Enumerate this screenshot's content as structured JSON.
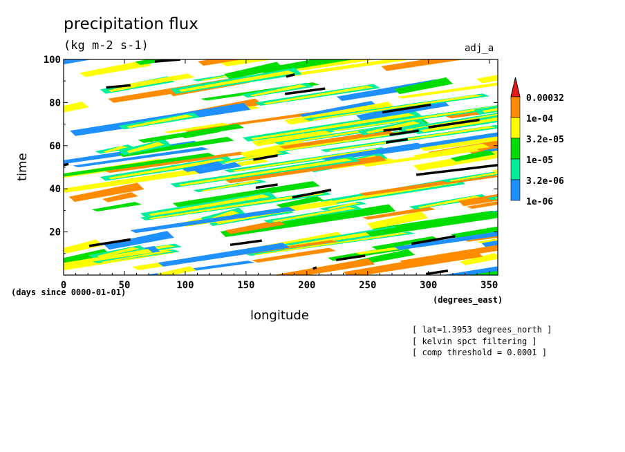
{
  "title": "precipitation flux",
  "units": "(kg m-2 s-1)",
  "dataset_tag": "adj_a",
  "notes": [
    "[ lat=1.3953 degrees_north ]",
    "[ kelvin spct filtering ]",
    "[ comp threshold = 0.0001 ]"
  ],
  "chart_data": {
    "type": "heatmap",
    "title": "precipitation flux",
    "xlabel": "longitude",
    "ylabel": "time",
    "x_units": "(degrees_east)",
    "time_units": "(days since 0000-01-01)",
    "xlim": [
      0,
      357
    ],
    "ylim": [
      0,
      100
    ],
    "x_ticks": [
      0,
      50,
      100,
      150,
      200,
      250,
      300,
      350
    ],
    "y_ticks": [
      20,
      40,
      60,
      80,
      100
    ],
    "colorbar": {
      "labels": [
        "0.00032",
        "1e-04",
        "3.2e-05",
        "1e-05",
        "3.2e-06",
        "1e-06"
      ],
      "colors": [
        "#ff8c00",
        "#ffff00",
        "#00dd00",
        "#00ee99",
        "#1e90ff"
      ],
      "overflow_color": "#e51a1a"
    },
    "highlight_color": "#000000",
    "highlighted_segments": [
      [
        [
          75,
          99
        ],
        [
          96,
          100
        ]
      ],
      [
        [
          35,
          87
        ],
        [
          55,
          88
        ]
      ],
      [
        [
          183,
          92
        ],
        [
          190,
          93
        ]
      ],
      [
        [
          182,
          84
        ],
        [
          215,
          86.5
        ]
      ],
      [
        [
          262,
          75.5
        ],
        [
          302,
          79
        ]
      ],
      [
        [
          300,
          68.5
        ],
        [
          342,
          72
        ]
      ],
      [
        [
          263,
          67
        ],
        [
          278,
          68
        ]
      ],
      [
        [
          268,
          65
        ],
        [
          292,
          67
        ]
      ],
      [
        [
          265,
          61.5
        ],
        [
          283,
          63
        ]
      ],
      [
        [
          156,
          53.5
        ],
        [
          176,
          55.5
        ]
      ],
      [
        [
          0,
          51
        ],
        [
          4,
          51.5
        ]
      ],
      [
        [
          290,
          46.5
        ],
        [
          357,
          51
        ]
      ],
      [
        [
          158,
          40.5
        ],
        [
          176,
          42
        ]
      ],
      [
        [
          188,
          36
        ],
        [
          220,
          39.5
        ]
      ],
      [
        [
          21,
          13.5
        ],
        [
          55,
          16.5
        ]
      ],
      [
        [
          137,
          14
        ],
        [
          163,
          16
        ]
      ],
      [
        [
          286,
          14.5
        ],
        [
          322,
          18
        ]
      ],
      [
        [
          224,
          7
        ],
        [
          248,
          9
        ]
      ],
      [
        [
          205,
          3
        ],
        [
          208,
          3.5
        ]
      ],
      [
        [
          298,
          0.5
        ],
        [
          316,
          2
        ]
      ]
    ]
  }
}
